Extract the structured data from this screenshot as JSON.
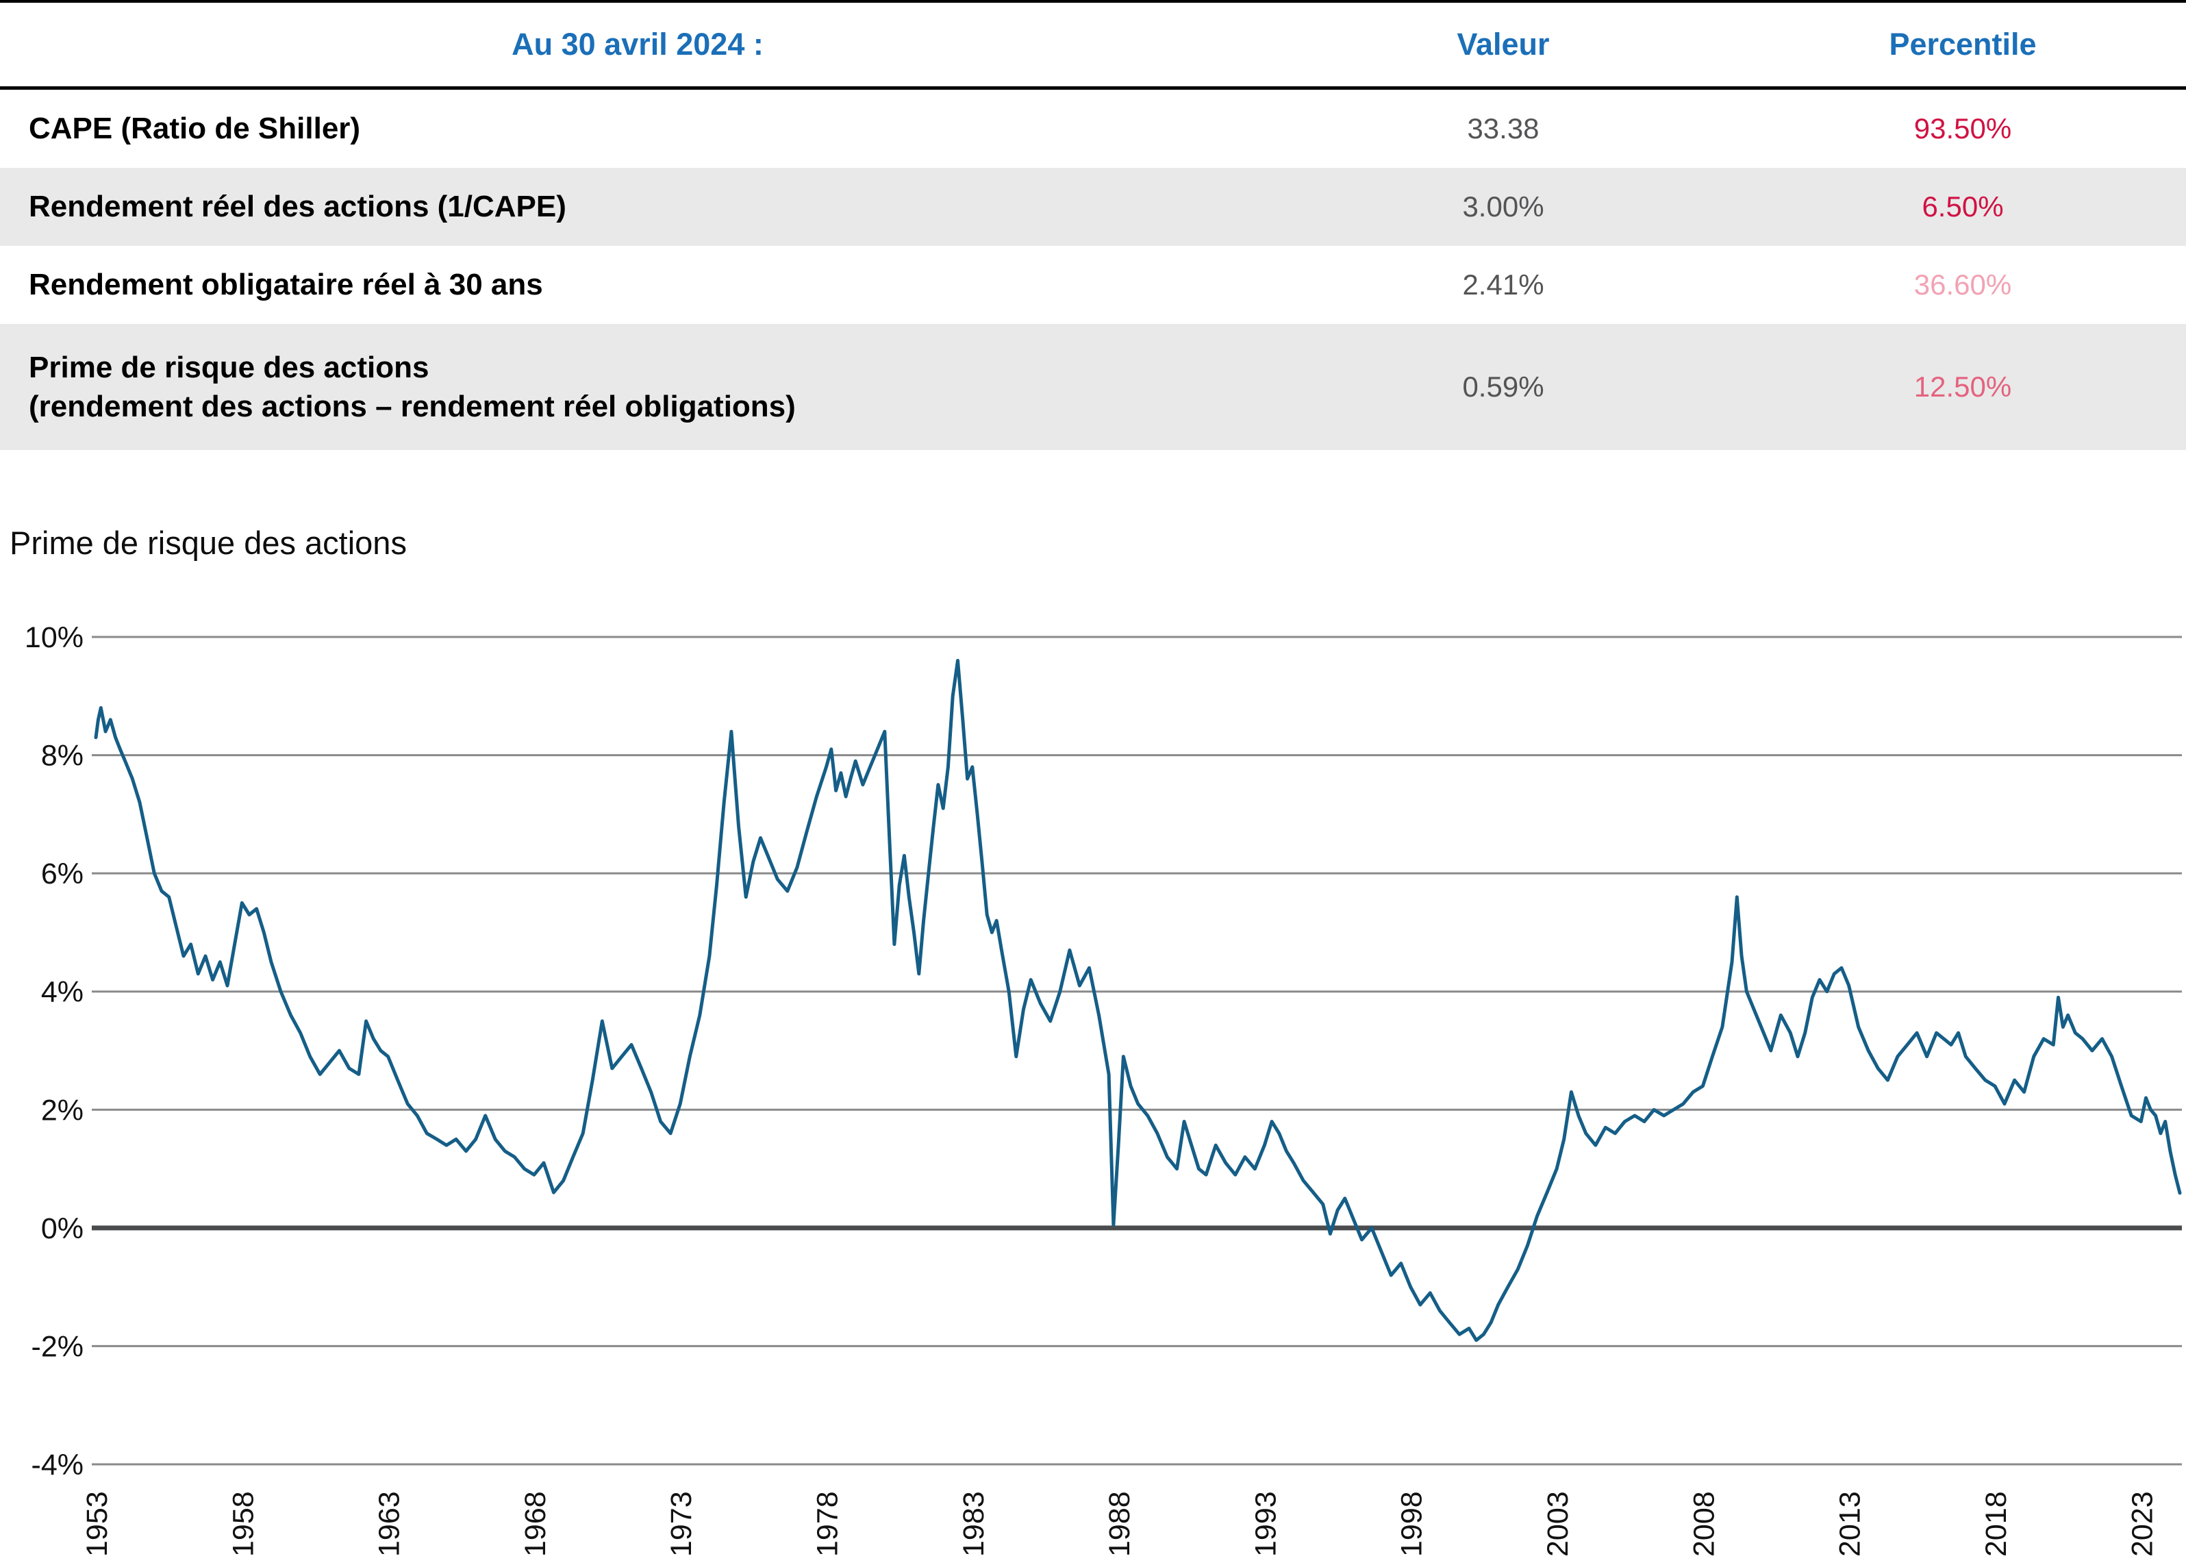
{
  "table": {
    "headers": {
      "label": "Au 30 avril 2024 :",
      "value": "Valeur",
      "percentile": "Percentile",
      "header_color": "#1B6FB8"
    },
    "rows": [
      {
        "label": "CAPE (Ratio de Shiller)",
        "label2": "",
        "value": "33.38",
        "percentile": "93.50%",
        "percentile_color": "#D01243"
      },
      {
        "label": "Rendement réel des actions (1/CAPE)",
        "label2": "",
        "value": "3.00%",
        "percentile": "6.50%",
        "percentile_color": "#D01243"
      },
      {
        "label": "Rendement obligataire réel à 30 ans",
        "label2": "",
        "value": "2.41%",
        "percentile": "36.60%",
        "percentile_color": "#F2A2B4"
      },
      {
        "label": "Prime de risque des actions",
        "label2": "(rendement des actions – rendement réel obligations)",
        "value": "0.59%",
        "percentile": "12.50%",
        "percentile_color": "#E4637F"
      }
    ]
  },
  "chart_data": {
    "type": "line",
    "title": "Prime de risque des actions",
    "xlabel": "",
    "ylabel": "",
    "x_range": [
      1953,
      2024.4
    ],
    "y_range": [
      -4,
      10
    ],
    "yticks": [
      10,
      8,
      6,
      4,
      2,
      0,
      -2,
      -4
    ],
    "ytick_labels": [
      "10%",
      "8%",
      "6%",
      "4%",
      "2%",
      "0%",
      "-2%",
      "-4%"
    ],
    "xticks": [
      1953,
      1958,
      1963,
      1968,
      1973,
      1978,
      1983,
      1988,
      1993,
      1998,
      2003,
      2008,
      2013,
      2018,
      2023
    ],
    "grid": true,
    "grid_color": "#8A8A8A",
    "zero_line": true,
    "zero_line_color": "#4A4B4D",
    "legend": "none",
    "series": [
      {
        "name": "Prime de risque des actions",
        "color": "#155E87",
        "points": [
          [
            1953.0,
            8.3
          ],
          [
            1953.08,
            8.6
          ],
          [
            1953.17,
            8.8
          ],
          [
            1953.33,
            8.4
          ],
          [
            1953.5,
            8.6
          ],
          [
            1953.67,
            8.3
          ],
          [
            1953.83,
            8.1
          ],
          [
            1954.0,
            7.9
          ],
          [
            1954.25,
            7.6
          ],
          [
            1954.5,
            7.2
          ],
          [
            1954.75,
            6.6
          ],
          [
            1955.0,
            6.0
          ],
          [
            1955.25,
            5.7
          ],
          [
            1955.5,
            5.6
          ],
          [
            1955.75,
            5.1
          ],
          [
            1956.0,
            4.6
          ],
          [
            1956.25,
            4.8
          ],
          [
            1956.5,
            4.3
          ],
          [
            1956.75,
            4.6
          ],
          [
            1957.0,
            4.2
          ],
          [
            1957.25,
            4.5
          ],
          [
            1957.5,
            4.1
          ],
          [
            1957.75,
            4.8
          ],
          [
            1958.0,
            5.5
          ],
          [
            1958.25,
            5.3
          ],
          [
            1958.5,
            5.4
          ],
          [
            1958.75,
            5.0
          ],
          [
            1959.0,
            4.5
          ],
          [
            1959.33,
            4.0
          ],
          [
            1959.67,
            3.6
          ],
          [
            1960.0,
            3.3
          ],
          [
            1960.33,
            2.9
          ],
          [
            1960.67,
            2.6
          ],
          [
            1961.0,
            2.8
          ],
          [
            1961.33,
            3.0
          ],
          [
            1961.67,
            2.7
          ],
          [
            1962.0,
            2.6
          ],
          [
            1962.25,
            3.5
          ],
          [
            1962.5,
            3.2
          ],
          [
            1962.75,
            3.0
          ],
          [
            1963.0,
            2.9
          ],
          [
            1963.33,
            2.5
          ],
          [
            1963.67,
            2.1
          ],
          [
            1964.0,
            1.9
          ],
          [
            1964.33,
            1.6
          ],
          [
            1964.67,
            1.5
          ],
          [
            1965.0,
            1.4
          ],
          [
            1965.33,
            1.5
          ],
          [
            1965.67,
            1.3
          ],
          [
            1966.0,
            1.5
          ],
          [
            1966.33,
            1.9
          ],
          [
            1966.67,
            1.5
          ],
          [
            1967.0,
            1.3
          ],
          [
            1967.33,
            1.2
          ],
          [
            1967.67,
            1.0
          ],
          [
            1968.0,
            0.9
          ],
          [
            1968.33,
            1.1
          ],
          [
            1968.67,
            0.6
          ],
          [
            1969.0,
            0.8
          ],
          [
            1969.33,
            1.2
          ],
          [
            1969.67,
            1.6
          ],
          [
            1970.0,
            2.5
          ],
          [
            1970.33,
            3.5
          ],
          [
            1970.67,
            2.7
          ],
          [
            1971.0,
            2.9
          ],
          [
            1971.33,
            3.1
          ],
          [
            1971.67,
            2.7
          ],
          [
            1972.0,
            2.3
          ],
          [
            1972.33,
            1.8
          ],
          [
            1972.67,
            1.6
          ],
          [
            1973.0,
            2.1
          ],
          [
            1973.33,
            2.9
          ],
          [
            1973.67,
            3.6
          ],
          [
            1974.0,
            4.6
          ],
          [
            1974.25,
            5.8
          ],
          [
            1974.5,
            7.2
          ],
          [
            1974.75,
            8.4
          ],
          [
            1975.0,
            6.8
          ],
          [
            1975.25,
            5.6
          ],
          [
            1975.5,
            6.2
          ],
          [
            1975.75,
            6.6
          ],
          [
            1976.0,
            6.3
          ],
          [
            1976.33,
            5.9
          ],
          [
            1976.67,
            5.7
          ],
          [
            1977.0,
            6.1
          ],
          [
            1977.33,
            6.7
          ],
          [
            1977.67,
            7.3
          ],
          [
            1978.0,
            7.8
          ],
          [
            1978.17,
            8.1
          ],
          [
            1978.33,
            7.4
          ],
          [
            1978.5,
            7.7
          ],
          [
            1978.67,
            7.3
          ],
          [
            1978.83,
            7.6
          ],
          [
            1979.0,
            7.9
          ],
          [
            1979.25,
            7.5
          ],
          [
            1979.5,
            7.8
          ],
          [
            1979.75,
            8.1
          ],
          [
            1980.0,
            8.4
          ],
          [
            1980.17,
            6.5
          ],
          [
            1980.33,
            4.8
          ],
          [
            1980.5,
            5.8
          ],
          [
            1980.67,
            6.3
          ],
          [
            1980.83,
            5.6
          ],
          [
            1981.0,
            5.0
          ],
          [
            1981.17,
            4.3
          ],
          [
            1981.33,
            5.2
          ],
          [
            1981.5,
            6.0
          ],
          [
            1981.67,
            6.8
          ],
          [
            1981.83,
            7.5
          ],
          [
            1982.0,
            7.1
          ],
          [
            1982.17,
            7.8
          ],
          [
            1982.33,
            9.0
          ],
          [
            1982.5,
            9.6
          ],
          [
            1982.67,
            8.6
          ],
          [
            1982.83,
            7.6
          ],
          [
            1983.0,
            7.8
          ],
          [
            1983.17,
            7.0
          ],
          [
            1983.33,
            6.2
          ],
          [
            1983.5,
            5.3
          ],
          [
            1983.67,
            5.0
          ],
          [
            1983.83,
            5.2
          ],
          [
            1984.0,
            4.7
          ],
          [
            1984.25,
            4.0
          ],
          [
            1984.5,
            2.9
          ],
          [
            1984.75,
            3.7
          ],
          [
            1985.0,
            4.2
          ],
          [
            1985.33,
            3.8
          ],
          [
            1985.67,
            3.5
          ],
          [
            1986.0,
            4.0
          ],
          [
            1986.33,
            4.7
          ],
          [
            1986.67,
            4.1
          ],
          [
            1987.0,
            4.4
          ],
          [
            1987.33,
            3.6
          ],
          [
            1987.67,
            2.6
          ],
          [
            1987.83,
            0.05
          ],
          [
            1988.0,
            1.4
          ],
          [
            1988.17,
            2.9
          ],
          [
            1988.42,
            2.4
          ],
          [
            1988.67,
            2.1
          ],
          [
            1989.0,
            1.9
          ],
          [
            1989.33,
            1.6
          ],
          [
            1989.67,
            1.2
          ],
          [
            1990.0,
            1.0
          ],
          [
            1990.25,
            1.8
          ],
          [
            1990.5,
            1.4
          ],
          [
            1990.75,
            1.0
          ],
          [
            1991.0,
            0.9
          ],
          [
            1991.33,
            1.4
          ],
          [
            1991.67,
            1.1
          ],
          [
            1992.0,
            0.9
          ],
          [
            1992.33,
            1.2
          ],
          [
            1992.67,
            1.0
          ],
          [
            1993.0,
            1.4
          ],
          [
            1993.25,
            1.8
          ],
          [
            1993.5,
            1.6
          ],
          [
            1993.75,
            1.3
          ],
          [
            1994.0,
            1.1
          ],
          [
            1994.33,
            0.8
          ],
          [
            1994.67,
            0.6
          ],
          [
            1995.0,
            0.4
          ],
          [
            1995.25,
            -0.1
          ],
          [
            1995.5,
            0.3
          ],
          [
            1995.75,
            0.5
          ],
          [
            1996.0,
            0.2
          ],
          [
            1996.33,
            -0.2
          ],
          [
            1996.67,
            0.0
          ],
          [
            1997.0,
            -0.4
          ],
          [
            1997.33,
            -0.8
          ],
          [
            1997.67,
            -0.6
          ],
          [
            1998.0,
            -1.0
          ],
          [
            1998.33,
            -1.3
          ],
          [
            1998.67,
            -1.1
          ],
          [
            1999.0,
            -1.4
          ],
          [
            1999.33,
            -1.6
          ],
          [
            1999.67,
            -1.8
          ],
          [
            2000.0,
            -1.7
          ],
          [
            2000.25,
            -1.9
          ],
          [
            2000.5,
            -1.8
          ],
          [
            2000.75,
            -1.6
          ],
          [
            2001.0,
            -1.3
          ],
          [
            2001.33,
            -1.0
          ],
          [
            2001.67,
            -0.7
          ],
          [
            2002.0,
            -0.3
          ],
          [
            2002.33,
            0.2
          ],
          [
            2002.67,
            0.6
          ],
          [
            2003.0,
            1.0
          ],
          [
            2003.25,
            1.5
          ],
          [
            2003.5,
            2.3
          ],
          [
            2003.75,
            1.9
          ],
          [
            2004.0,
            1.6
          ],
          [
            2004.33,
            1.4
          ],
          [
            2004.67,
            1.7
          ],
          [
            2005.0,
            1.6
          ],
          [
            2005.33,
            1.8
          ],
          [
            2005.67,
            1.9
          ],
          [
            2006.0,
            1.8
          ],
          [
            2006.33,
            2.0
          ],
          [
            2006.67,
            1.9
          ],
          [
            2007.0,
            2.0
          ],
          [
            2007.33,
            2.1
          ],
          [
            2007.67,
            2.3
          ],
          [
            2008.0,
            2.4
          ],
          [
            2008.33,
            2.9
          ],
          [
            2008.67,
            3.4
          ],
          [
            2009.0,
            4.5
          ],
          [
            2009.17,
            5.6
          ],
          [
            2009.33,
            4.6
          ],
          [
            2009.5,
            4.0
          ],
          [
            2009.75,
            3.7
          ],
          [
            2010.0,
            3.4
          ],
          [
            2010.33,
            3.0
          ],
          [
            2010.67,
            3.6
          ],
          [
            2011.0,
            3.3
          ],
          [
            2011.25,
            2.9
          ],
          [
            2011.5,
            3.3
          ],
          [
            2011.75,
            3.9
          ],
          [
            2012.0,
            4.2
          ],
          [
            2012.25,
            4.0
          ],
          [
            2012.5,
            4.3
          ],
          [
            2012.75,
            4.4
          ],
          [
            2013.0,
            4.1
          ],
          [
            2013.33,
            3.4
          ],
          [
            2013.67,
            3.0
          ],
          [
            2014.0,
            2.7
          ],
          [
            2014.33,
            2.5
          ],
          [
            2014.67,
            2.9
          ],
          [
            2015.0,
            3.1
          ],
          [
            2015.33,
            3.3
          ],
          [
            2015.67,
            2.9
          ],
          [
            2016.0,
            3.3
          ],
          [
            2016.25,
            3.2
          ],
          [
            2016.5,
            3.1
          ],
          [
            2016.75,
            3.3
          ],
          [
            2017.0,
            2.9
          ],
          [
            2017.33,
            2.7
          ],
          [
            2017.67,
            2.5
          ],
          [
            2018.0,
            2.4
          ],
          [
            2018.33,
            2.1
          ],
          [
            2018.67,
            2.5
          ],
          [
            2019.0,
            2.3
          ],
          [
            2019.33,
            2.9
          ],
          [
            2019.67,
            3.2
          ],
          [
            2020.0,
            3.1
          ],
          [
            2020.17,
            3.9
          ],
          [
            2020.33,
            3.4
          ],
          [
            2020.5,
            3.6
          ],
          [
            2020.75,
            3.3
          ],
          [
            2021.0,
            3.2
          ],
          [
            2021.33,
            3.0
          ],
          [
            2021.67,
            3.2
          ],
          [
            2022.0,
            2.9
          ],
          [
            2022.33,
            2.4
          ],
          [
            2022.67,
            1.9
          ],
          [
            2023.0,
            1.8
          ],
          [
            2023.17,
            2.2
          ],
          [
            2023.33,
            2.0
          ],
          [
            2023.5,
            1.9
          ],
          [
            2023.67,
            1.6
          ],
          [
            2023.83,
            1.8
          ],
          [
            2024.0,
            1.3
          ],
          [
            2024.17,
            0.9
          ],
          [
            2024.33,
            0.59
          ]
        ]
      }
    ]
  }
}
